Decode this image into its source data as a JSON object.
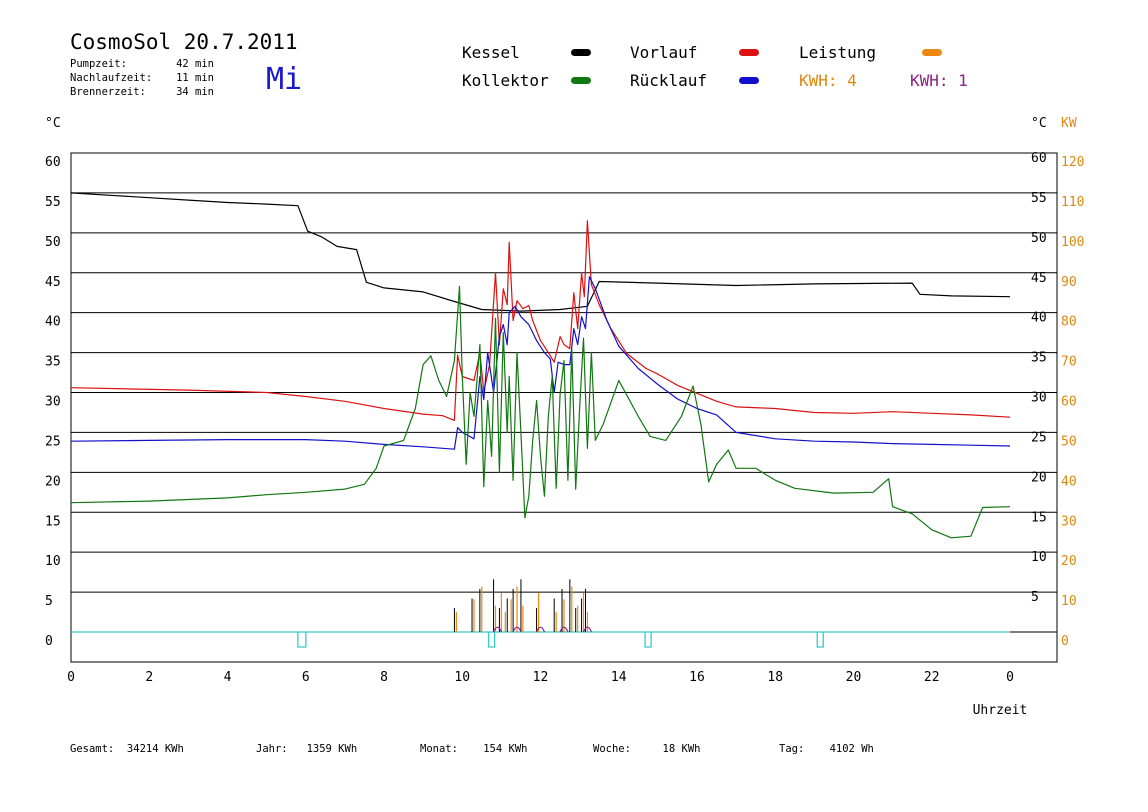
{
  "header": {
    "title": "CosmoSol 20.7.2011",
    "day": "Mi",
    "info": [
      {
        "label": "Pumpzeit:",
        "value": "42 min"
      },
      {
        "label": "Nachlaufzeit:",
        "value": "11 min"
      },
      {
        "label": "Brennerzeit:",
        "value": "34 min"
      }
    ]
  },
  "legend": {
    "kessel": "Kessel",
    "vorlauf": "Vorlauf",
    "leistung": "Leistung",
    "kollektor": "Kollektor",
    "ruecklauf": "Rücklauf",
    "kwh1": "KWH: 4",
    "kwh2": "KWH: 1"
  },
  "colors": {
    "kessel": "#000000",
    "vorlauf": "#dd1111",
    "ruecklauf": "#1111cc",
    "kollektor": "#117711",
    "leistung": "#ee8811",
    "kwh2": "#882288",
    "pump": "#33cccc",
    "kw_axis": "#dd8811"
  },
  "footer": [
    {
      "label": "Gesamt:",
      "value": "34214 KWh"
    },
    {
      "label": "Jahr:",
      "value": "1359 KWh"
    },
    {
      "label": "Monat:",
      "value": "154 KWh"
    },
    {
      "label": "Woche:",
      "value": "18 KWh"
    },
    {
      "label": "Tag:",
      "value": "4102 Wh"
    }
  ],
  "chart_data": {
    "type": "line",
    "title": "CosmoSol 20.7.2011",
    "xlabel": "Uhrzeit",
    "ylabel_left": "°C",
    "ylabel_right": "°C",
    "ylabel_right2": "KW",
    "xlim": [
      0,
      24
    ],
    "ylim": [
      0,
      60
    ],
    "y2lim": [
      0,
      120
    ],
    "x_ticks": [
      "0",
      "2",
      "4",
      "6",
      "8",
      "10",
      "12",
      "14",
      "16",
      "18",
      "20",
      "22",
      "0"
    ],
    "y_ticks_left": [
      "0",
      "5",
      "10",
      "15",
      "20",
      "25",
      "30",
      "35",
      "40",
      "45",
      "50",
      "55",
      "60"
    ],
    "y_ticks_right": [
      "5",
      "10",
      "15",
      "20",
      "25",
      "30",
      "35",
      "40",
      "45",
      "50",
      "55",
      "60"
    ],
    "y2_ticks": [
      "0",
      "10",
      "20",
      "30",
      "40",
      "50",
      "60",
      "70",
      "80",
      "90",
      "100",
      "110",
      "120"
    ],
    "grid": true,
    "series": [
      {
        "name": "Kessel",
        "key": "kessel",
        "points": [
          [
            0,
            55
          ],
          [
            1,
            54.7
          ],
          [
            2,
            54.4
          ],
          [
            3,
            54.1
          ],
          [
            4,
            53.8
          ],
          [
            5,
            53.6
          ],
          [
            5.8,
            53.4
          ],
          [
            6.05,
            50.2
          ],
          [
            6.4,
            49.5
          ],
          [
            6.8,
            48.3
          ],
          [
            7.3,
            47.9
          ],
          [
            7.55,
            43.8
          ],
          [
            8,
            43.1
          ],
          [
            9,
            42.6
          ],
          [
            9.8,
            41.4
          ],
          [
            10.5,
            40.4
          ],
          [
            11.5,
            40.2
          ],
          [
            12.5,
            40.4
          ],
          [
            13.2,
            40.8
          ],
          [
            13.5,
            43.9
          ],
          [
            15,
            43.7
          ],
          [
            17,
            43.4
          ],
          [
            19,
            43.6
          ],
          [
            21.5,
            43.7
          ],
          [
            21.7,
            42.3
          ],
          [
            22.5,
            42.1
          ],
          [
            24,
            42
          ]
        ]
      },
      {
        "name": "Vorlauf",
        "key": "vorlauf",
        "points": [
          [
            0,
            30.6
          ],
          [
            3,
            30.3
          ],
          [
            5,
            30
          ],
          [
            6,
            29.5
          ],
          [
            7,
            28.9
          ],
          [
            8,
            28
          ],
          [
            9,
            27.3
          ],
          [
            9.5,
            27.1
          ],
          [
            9.8,
            26.5
          ],
          [
            9.88,
            34.7
          ],
          [
            10.0,
            32
          ],
          [
            10.3,
            31.5
          ],
          [
            10.45,
            35
          ],
          [
            10.55,
            30.1
          ],
          [
            10.7,
            33.5
          ],
          [
            10.85,
            45
          ],
          [
            10.95,
            36
          ],
          [
            11.05,
            43
          ],
          [
            11.15,
            41
          ],
          [
            11.2,
            48.8
          ],
          [
            11.3,
            39
          ],
          [
            11.4,
            41.5
          ],
          [
            11.55,
            40.5
          ],
          [
            11.7,
            40.9
          ],
          [
            11.8,
            39
          ],
          [
            12.0,
            36.5
          ],
          [
            12.2,
            35
          ],
          [
            12.35,
            33.8
          ],
          [
            12.5,
            37
          ],
          [
            12.6,
            36
          ],
          [
            12.75,
            35.5
          ],
          [
            12.85,
            42.5
          ],
          [
            12.95,
            38
          ],
          [
            13.05,
            45
          ],
          [
            13.12,
            42
          ],
          [
            13.2,
            51.5
          ],
          [
            13.3,
            43.5
          ],
          [
            13.5,
            41
          ],
          [
            13.8,
            38
          ],
          [
            14.2,
            34.9
          ],
          [
            14.7,
            33
          ],
          [
            15,
            32.3
          ],
          [
            15.5,
            30.9
          ],
          [
            16,
            29.9
          ],
          [
            16.5,
            28.9
          ],
          [
            17,
            28.2
          ],
          [
            18,
            28
          ],
          [
            19,
            27.5
          ],
          [
            20,
            27.4
          ],
          [
            21,
            27.6
          ],
          [
            22,
            27.4
          ],
          [
            23,
            27.2
          ],
          [
            24,
            26.9
          ]
        ]
      },
      {
        "name": "Rücklauf",
        "key": "ruecklauf",
        "points": [
          [
            0,
            23.9
          ],
          [
            2,
            24
          ],
          [
            4,
            24.1
          ],
          [
            6,
            24.1
          ],
          [
            7,
            23.9
          ],
          [
            8,
            23.5
          ],
          [
            9,
            23.2
          ],
          [
            9.8,
            22.9
          ],
          [
            9.88,
            25.6
          ],
          [
            10.0,
            25
          ],
          [
            10.3,
            24.2
          ],
          [
            10.45,
            32
          ],
          [
            10.55,
            29.1
          ],
          [
            10.65,
            35
          ],
          [
            10.8,
            30
          ],
          [
            10.95,
            37
          ],
          [
            11.05,
            38.5
          ],
          [
            11.15,
            36
          ],
          [
            11.2,
            40
          ],
          [
            11.35,
            40.8
          ],
          [
            11.5,
            39.5
          ],
          [
            11.7,
            38.5
          ],
          [
            11.9,
            36.5
          ],
          [
            12.1,
            35
          ],
          [
            12.25,
            34.2
          ],
          [
            12.35,
            30
          ],
          [
            12.45,
            33.8
          ],
          [
            12.6,
            33.5
          ],
          [
            12.75,
            33.5
          ],
          [
            12.85,
            38
          ],
          [
            12.95,
            36
          ],
          [
            13.05,
            39.5
          ],
          [
            13.15,
            38
          ],
          [
            13.25,
            44.5
          ],
          [
            13.4,
            43
          ],
          [
            13.7,
            39
          ],
          [
            14,
            35.8
          ],
          [
            14.5,
            33
          ],
          [
            15,
            31
          ],
          [
            15.5,
            29.2
          ],
          [
            16,
            28
          ],
          [
            16.5,
            27.2
          ],
          [
            17,
            25
          ],
          [
            18,
            24.2
          ],
          [
            19,
            23.9
          ],
          [
            20,
            23.8
          ],
          [
            21,
            23.6
          ],
          [
            22,
            23.5
          ],
          [
            23,
            23.4
          ],
          [
            24,
            23.3
          ]
        ]
      },
      {
        "name": "Kollektor",
        "key": "kollektor",
        "points": [
          [
            0,
            16.2
          ],
          [
            2,
            16.4
          ],
          [
            4,
            16.8
          ],
          [
            5,
            17.2
          ],
          [
            6,
            17.5
          ],
          [
            7,
            17.9
          ],
          [
            7.5,
            18.5
          ],
          [
            7.8,
            20.5
          ],
          [
            8,
            23.3
          ],
          [
            8.5,
            24
          ],
          [
            8.8,
            28
          ],
          [
            9,
            33.5
          ],
          [
            9.2,
            34.6
          ],
          [
            9.4,
            31.5
          ],
          [
            9.6,
            29.5
          ],
          [
            9.8,
            34
          ],
          [
            9.93,
            43.3
          ],
          [
            10.0,
            32
          ],
          [
            10.1,
            21
          ],
          [
            10.2,
            30
          ],
          [
            10.3,
            27
          ],
          [
            10.45,
            36
          ],
          [
            10.55,
            18.2
          ],
          [
            10.65,
            29
          ],
          [
            10.75,
            22
          ],
          [
            10.85,
            39.3
          ],
          [
            10.95,
            20
          ],
          [
            11.05,
            37.5
          ],
          [
            11.15,
            25
          ],
          [
            11.2,
            32
          ],
          [
            11.3,
            19
          ],
          [
            11.4,
            35
          ],
          [
            11.5,
            25
          ],
          [
            11.6,
            14.3
          ],
          [
            11.7,
            17
          ],
          [
            11.8,
            24
          ],
          [
            11.9,
            29
          ],
          [
            12.0,
            22
          ],
          [
            12.1,
            17
          ],
          [
            12.2,
            27
          ],
          [
            12.3,
            32
          ],
          [
            12.4,
            18
          ],
          [
            12.5,
            29.8
          ],
          [
            12.6,
            34
          ],
          [
            12.7,
            19
          ],
          [
            12.8,
            35.4
          ],
          [
            12.9,
            17.9
          ],
          [
            13.0,
            28
          ],
          [
            13.1,
            36.8
          ],
          [
            13.2,
            23
          ],
          [
            13.3,
            35
          ],
          [
            13.4,
            24
          ],
          [
            13.6,
            26
          ],
          [
            14,
            31.5
          ],
          [
            14.5,
            27
          ],
          [
            14.8,
            24.5
          ],
          [
            15.2,
            24
          ],
          [
            15.6,
            27
          ],
          [
            15.9,
            30.8
          ],
          [
            16.1,
            26
          ],
          [
            16.3,
            18.8
          ],
          [
            16.5,
            21
          ],
          [
            16.8,
            22.8
          ],
          [
            17,
            20.5
          ],
          [
            17.5,
            20.5
          ],
          [
            18,
            19
          ],
          [
            18.5,
            18
          ],
          [
            19.5,
            17.4
          ],
          [
            20.5,
            17.5
          ],
          [
            20.9,
            19.2
          ],
          [
            21,
            15.7
          ],
          [
            21.5,
            14.8
          ],
          [
            22,
            12.8
          ],
          [
            22.5,
            11.8
          ],
          [
            23,
            12
          ],
          [
            23.3,
            15.6
          ],
          [
            24,
            15.7
          ]
        ]
      }
    ],
    "pump_markers_hours": [
      5.9,
      10.75,
      14.75,
      19.15
    ],
    "leistung_spikes_hours": [
      9.85,
      10.3,
      10.5,
      10.85,
      11.0,
      11.1,
      11.25,
      11.4,
      11.55,
      11.95,
      12.4,
      12.6,
      12.8,
      12.95,
      13.1,
      13.2
    ],
    "kessel_spikes_hours": [
      9.8,
      10.25,
      10.45,
      10.8,
      10.95,
      11.15,
      11.3,
      11.5,
      11.9,
      12.35,
      12.55,
      12.75,
      12.9,
      13.05,
      13.15
    ]
  }
}
